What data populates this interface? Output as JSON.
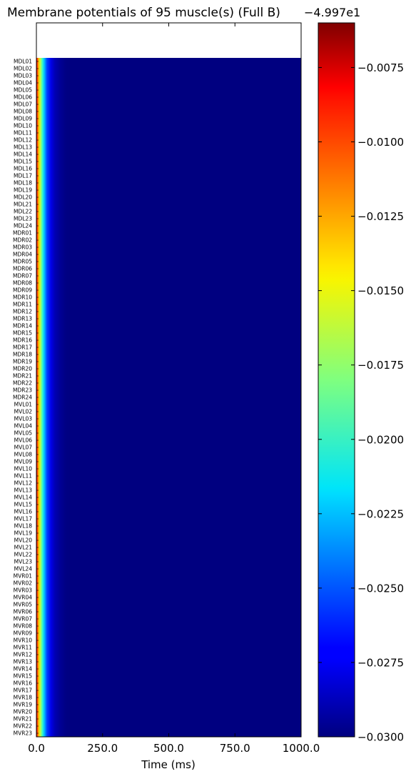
{
  "chart_data": {
    "type": "heatmap",
    "title": "Membrane potentials of 95 muscle(s) (Full B)",
    "xlabel": "Time (ms)",
    "ylabel": "",
    "x_range": [
      0,
      1000
    ],
    "x_ticks": [
      0,
      250,
      500,
      750,
      1000
    ],
    "x_tick_labels": [
      "0.0",
      "250.0",
      "500.0",
      "750.0",
      "1000.0"
    ],
    "colorbar": {
      "colormap": "jet",
      "offset_label": "−4.997e1",
      "range": [
        -0.03,
        -0.006
      ],
      "ticks": [
        -0.03,
        -0.0275,
        -0.025,
        -0.0225,
        -0.02,
        -0.0175,
        -0.015,
        -0.0125,
        -0.01,
        -0.0075
      ],
      "tick_labels": [
        "−0.0300",
        "−0.0275",
        "−0.0250",
        "−0.0225",
        "−0.0200",
        "−0.0175",
        "−0.0150",
        "−0.0125",
        "−0.0100",
        "−0.0075"
      ]
    },
    "rows": [
      "MDL01",
      "MDL02",
      "MDL03",
      "MDL04",
      "MDL05",
      "MDL06",
      "MDL07",
      "MDL08",
      "MDL09",
      "MDL10",
      "MDL11",
      "MDL12",
      "MDL13",
      "MDL14",
      "MDL15",
      "MDL16",
      "MDL17",
      "MDL18",
      "MDL19",
      "MDL20",
      "MDL21",
      "MDL22",
      "MDL23",
      "MDL24",
      "MDR01",
      "MDR02",
      "MDR03",
      "MDR04",
      "MDR05",
      "MDR06",
      "MDR07",
      "MDR08",
      "MDR09",
      "MDR10",
      "MDR11",
      "MDR12",
      "MDR13",
      "MDR14",
      "MDR15",
      "MDR16",
      "MDR17",
      "MDR18",
      "MDR19",
      "MDR20",
      "MDR21",
      "MDR22",
      "MDR23",
      "MDR24",
      "MVL01",
      "MVL02",
      "MVL03",
      "MVL04",
      "MVL05",
      "MVL06",
      "MVL07",
      "MVL08",
      "MVL09",
      "MVL10",
      "MVL11",
      "MVL12",
      "MVL13",
      "MVL14",
      "MVL15",
      "MVL16",
      "MVL17",
      "MVL18",
      "MVL19",
      "MVL20",
      "MVL21",
      "MVL22",
      "MVL23",
      "MVL24",
      "MVR01",
      "MVR02",
      "MVR03",
      "MVR04",
      "MVR05",
      "MVR06",
      "MVR07",
      "MVR08",
      "MVR09",
      "MVR10",
      "MVR11",
      "MVR12",
      "MVR13",
      "MVR14",
      "MVR15",
      "MVR16",
      "MVR17",
      "MVR18",
      "MVR19",
      "MVR20",
      "MVR21",
      "MVR22",
      "MVR23"
    ],
    "time_profile": {
      "description_values_ms": [
        0,
        3,
        8,
        15,
        22,
        30,
        40,
        55,
        70,
        90,
        110,
        130,
        1000
      ],
      "values": [
        -0.0075,
        -0.01,
        -0.0135,
        -0.0165,
        -0.0195,
        -0.0225,
        -0.0255,
        -0.0275,
        -0.0288,
        -0.0295,
        -0.0299,
        -0.03,
        -0.03
      ]
    }
  }
}
